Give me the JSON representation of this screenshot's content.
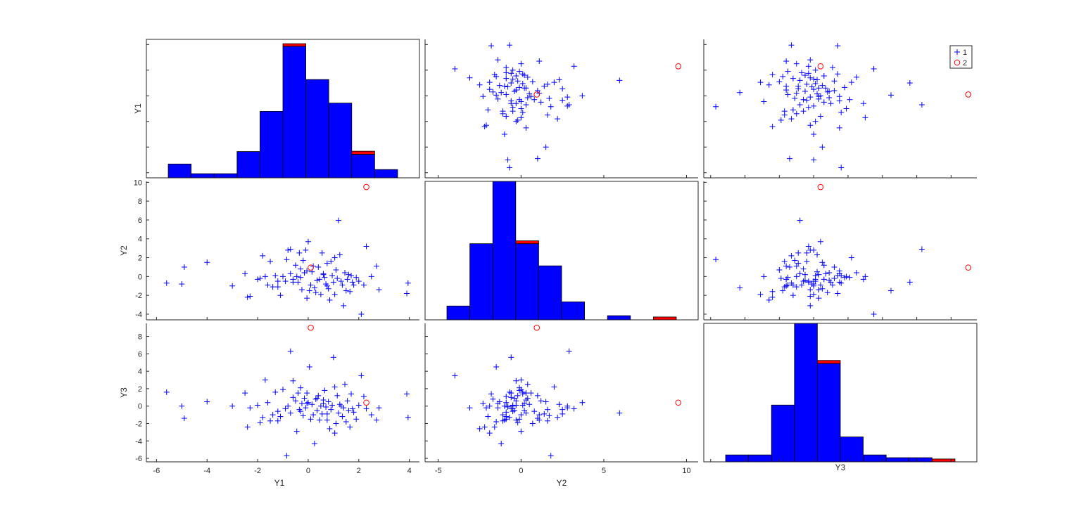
{
  "chart_data": {
    "type": "scatter",
    "title": "",
    "variables": [
      "Y1",
      "Y2",
      "Y3"
    ],
    "groups": [
      {
        "name": "1",
        "marker": "plus",
        "color": "#0000ff"
      },
      {
        "name": "2",
        "marker": "circle",
        "color": "#ff0000"
      }
    ],
    "legend": {
      "placement": "top-right",
      "entries": [
        "1",
        "2"
      ]
    },
    "axes": {
      "Y1": {
        "range": [
          -6.4,
          4.4
        ],
        "ticks": [
          -6,
          -4,
          -2,
          0,
          2,
          4
        ]
      },
      "Y2": {
        "range": [
          -5.8,
          10.7
        ],
        "ticks": [
          -5,
          0,
          5,
          10
        ],
        "row_range": [
          -4.6,
          10.1
        ],
        "row_ticks": [
          -4,
          -2,
          0,
          2,
          4,
          6,
          8,
          10
        ]
      },
      "Y3": {
        "range": [
          -6.4,
          9.5
        ],
        "ticks": [
          -6,
          -4,
          -2,
          0,
          2,
          4,
          6,
          8
        ]
      }
    },
    "points": {
      "Y1": [
        -5.6,
        -5.0,
        -4.9,
        -4.0,
        -3.0,
        -2.5,
        -2.4,
        -2.3,
        -2.0,
        -1.9,
        -1.8,
        -1.7,
        -1.6,
        -1.5,
        -1.4,
        -1.3,
        -1.2,
        -1.1,
        -1.0,
        -0.9,
        -0.8,
        -0.7,
        -0.7,
        -0.6,
        -0.5,
        -0.45,
        -0.4,
        -0.35,
        -0.3,
        -0.25,
        -0.2,
        -0.15,
        -0.1,
        -0.05,
        0.0,
        0.05,
        0.1,
        0.15,
        0.2,
        0.25,
        0.3,
        0.35,
        0.4,
        0.45,
        0.5,
        0.55,
        0.6,
        0.65,
        0.7,
        0.75,
        0.8,
        0.85,
        0.9,
        0.95,
        1.0,
        1.05,
        1.1,
        1.15,
        1.2,
        1.25,
        1.3,
        1.35,
        1.4,
        1.45,
        1.5,
        1.55,
        1.6,
        1.65,
        1.7,
        1.75,
        1.8,
        1.9,
        2.0,
        2.1,
        2.2,
        2.3,
        2.5,
        2.7,
        2.8,
        3.9,
        3.95,
        -0.85,
        0.35,
        -0.3,
        1.05,
        -1.2,
        0.6,
        -0.05,
        0.75,
        -0.6
      ],
      "Y2": [
        -0.7,
        -0.8,
        1.0,
        1.5,
        -1.0,
        0.3,
        -2.2,
        -2.1,
        -0.3,
        -0.2,
        2.2,
        0.0,
        -0.9,
        1.6,
        -1.1,
        0.1,
        -0.5,
        -2.0,
        0.0,
        -0.5,
        2.8,
        0.3,
        2.9,
        -0.3,
        1.2,
        0.0,
        -0.6,
        2.5,
        -0.1,
        -1.4,
        1.7,
        0.4,
        2.8,
        0.6,
        3.7,
        -1.5,
        -0.9,
        0.5,
        1.1,
        -1.2,
        -1.7,
        -0.4,
        1.0,
        -0.3,
        -1.9,
        2.5,
        0.2,
        -0.1,
        -0.8,
        -1.0,
        -1.3,
        -2.5,
        1.6,
        0.1,
        -0.6,
        -1.9,
        0.7,
        -0.2,
        5.95,
        2.3,
        -0.5,
        -0.9,
        -3.1,
        0.4,
        -1.5,
        -0.3,
        0.2,
        -1.6,
        0.1,
        -0.6,
        -0.9,
        -0.1,
        -0.5,
        -4.0,
        -0.9,
        3.2,
        0.0,
        1.1,
        -1.4,
        -1.8,
        -0.7,
        1.8,
        -0.4,
        0.8,
        2.0,
        -1.1,
        0.3,
        -2.3,
        1.4,
        -0.6
      ],
      "Y3": [
        1.6,
        0.0,
        -1.4,
        0.5,
        0.0,
        1.5,
        -2.4,
        -0.2,
        0.1,
        -1.9,
        -1.3,
        3.0,
        0.4,
        -1.7,
        -1.0,
        1.6,
        -0.6,
        -1.2,
        1.9,
        -0.3,
        0.0,
        -0.8,
        6.3,
        2.9,
        0.6,
        -2.9,
        1.5,
        -0.4,
        2.1,
        0.3,
        -1.1,
        0.9,
        -0.2,
        1.5,
        0.4,
        4.5,
        -1.5,
        0.2,
        -1.0,
        -4.3,
        0.8,
        -0.5,
        1.2,
        -1.6,
        0.0,
        -0.9,
        0.3,
        1.8,
        -0.1,
        -1.6,
        0.5,
        -2.6,
        -0.4,
        0.1,
        5.6,
        -3.1,
        -2.0,
        1.2,
        -0.8,
        0.2,
        0.0,
        -1.2,
        -0.2,
        2.5,
        -1.8,
        0.6,
        -0.5,
        -2.4,
        1.4,
        -0.3,
        -0.7,
        -1.5,
        0.1,
        3.5,
        1.1,
        -0.3,
        -1.0,
        -1.6,
        -0.2,
        1.4,
        -1.3,
        -5.7,
        0.9,
        -0.6,
        2.2,
        -1.7,
        0.7,
        0.3,
        -0.9,
        1.0
      ]
    },
    "outliers": {
      "Y1": [
        2.3
      ],
      "Y2": [
        9.5
      ],
      "Y3": [
        0.4
      ]
    },
    "outliers_extra": [
      {
        "Y1": 0.1,
        "Y2": 0.95,
        "Y3": 9.0
      }
    ],
    "histograms": {
      "Y1": {
        "edges": [
          -5.63,
          -4.65,
          -3.66,
          -2.68,
          -1.7,
          -0.71,
          0.27,
          1.25,
          2.24,
          3.22,
          4.2
        ],
        "group1": [
          1,
          0.3,
          0.3,
          1.9,
          4.8,
          9.5,
          7.1,
          5.4,
          1.7,
          0.6
        ],
        "group2": [
          0,
          0,
          0,
          0,
          0,
          0.25,
          0,
          0,
          0.35,
          0
        ]
      },
      "Y2": {
        "edges": [
          -4.05,
          -2.69,
          -1.32,
          0.05,
          1.42,
          2.79,
          4.16,
          5.53,
          6.9,
          8.27,
          9.64
        ],
        "group1": [
          1,
          5.5,
          10,
          5.5,
          3.9,
          1.3,
          0,
          0.3,
          0,
          0
        ],
        "group2": [
          0,
          0,
          0,
          0.3,
          0,
          0,
          0,
          0,
          0,
          0.3
        ]
      },
      "Y3": {
        "edges": [
          -5.7,
          -4.23,
          -2.76,
          -1.3,
          0.17,
          1.64,
          3.11,
          4.57,
          6.04,
          7.51,
          8.98
        ],
        "group1": [
          0.5,
          0.5,
          4.1,
          10,
          7.1,
          1.8,
          0.5,
          0.3,
          0.3,
          0
        ],
        "group2": [
          0,
          0,
          0,
          0,
          0.35,
          0,
          0,
          0,
          0,
          0.3
        ]
      }
    }
  }
}
